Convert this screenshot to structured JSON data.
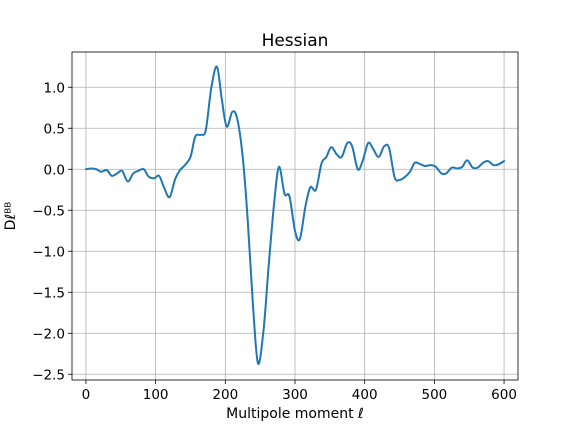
{
  "chart_data": {
    "type": "line",
    "title": "Hessian",
    "xlabel": "Multipole moment ℓ",
    "ylabel": "Dℓᴮᴮ",
    "xlim": [
      -20,
      620
    ],
    "ylim": [
      -2.57,
      1.43
    ],
    "xticks": [
      0,
      100,
      200,
      300,
      400,
      500,
      600
    ],
    "xtick_labels": [
      "0",
      "100",
      "200",
      "300",
      "400",
      "500",
      "600"
    ],
    "yticks": [
      -2.5,
      -2.0,
      -1.5,
      -1.0,
      -0.5,
      0.0,
      0.5,
      1.0
    ],
    "ytick_labels": [
      "−2.5",
      "−2.0",
      "−1.5",
      "−1.0",
      "−0.5",
      "0.0",
      "0.5",
      "1.0"
    ],
    "grid": true,
    "series": [
      {
        "color": "#1f77b4",
        "x": [
          0,
          8,
          15,
          22,
          30,
          37,
          45,
          52,
          60,
          68,
          75,
          83,
          90,
          98,
          105,
          112,
          120,
          128,
          135,
          142,
          150,
          157,
          165,
          172,
          180,
          188,
          195,
          202,
          210,
          217,
          225,
          232,
          240,
          247,
          255,
          262,
          270,
          277,
          285,
          292,
          300,
          307,
          315,
          322,
          330,
          338,
          345,
          352,
          360,
          367,
          375,
          382,
          390,
          397,
          405,
          412,
          420,
          428,
          435,
          443,
          450,
          457,
          465,
          472,
          480,
          487,
          495,
          502,
          510,
          517,
          525,
          533,
          540,
          547,
          555,
          562,
          570,
          577,
          585,
          592,
          600
        ],
        "y": [
          0.0,
          0.01,
          0.0,
          -0.03,
          -0.01,
          -0.08,
          -0.05,
          -0.02,
          -0.15,
          -0.05,
          -0.02,
          0.0,
          -0.09,
          -0.11,
          -0.08,
          -0.22,
          -0.34,
          -0.12,
          -0.01,
          0.05,
          0.15,
          0.4,
          0.42,
          0.48,
          1.0,
          1.25,
          0.85,
          0.52,
          0.7,
          0.62,
          0.15,
          -0.6,
          -1.7,
          -2.37,
          -1.95,
          -1.2,
          -0.42,
          0.03,
          -0.3,
          -0.33,
          -0.75,
          -0.85,
          -0.45,
          -0.22,
          -0.25,
          0.07,
          0.15,
          0.27,
          0.18,
          0.15,
          0.32,
          0.28,
          0.0,
          0.1,
          0.32,
          0.25,
          0.15,
          0.28,
          0.26,
          -0.1,
          -0.13,
          -0.1,
          -0.03,
          0.08,
          0.06,
          0.04,
          0.05,
          0.03,
          -0.05,
          -0.05,
          0.02,
          0.01,
          0.03,
          0.11,
          0.02,
          0.02,
          0.08,
          0.1,
          0.05,
          0.06,
          0.1
        ]
      }
    ]
  }
}
